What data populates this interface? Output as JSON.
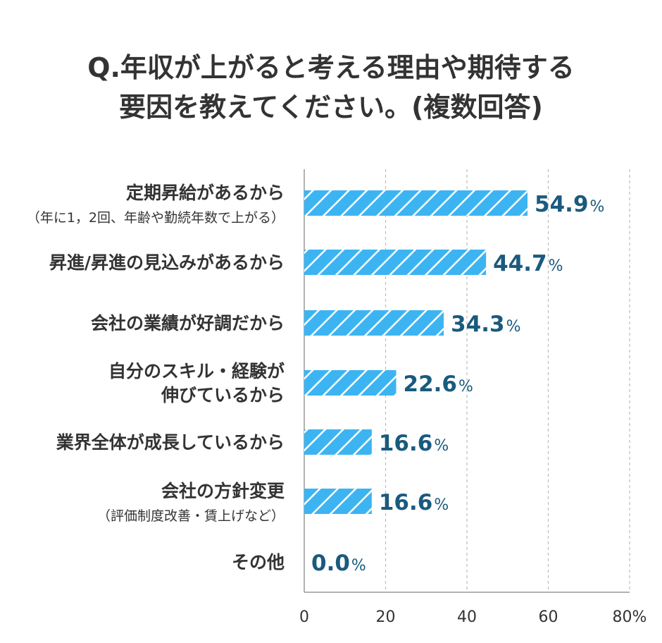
{
  "chart_data": {
    "type": "bar",
    "orientation": "horizontal",
    "title_lines": [
      "Q.年収が上がると考える理由や期待する",
      "要因を教えてください。(複数回答)"
    ],
    "categories": [
      {
        "lines": [
          "定期昇給があるから"
        ],
        "sub": "（年に1，2回、年齢や勤続年数で上がる）"
      },
      {
        "lines": [
          "昇進/昇進の見込みがあるから"
        ],
        "sub": ""
      },
      {
        "lines": [
          "会社の業績が好調だから"
        ],
        "sub": ""
      },
      {
        "lines": [
          "自分のスキル・経験が",
          "伸びているから"
        ],
        "sub": ""
      },
      {
        "lines": [
          "業界全体が成長しているから"
        ],
        "sub": ""
      },
      {
        "lines": [
          "会社の方針変更"
        ],
        "sub": "（評価制度改善・賃上げなど）"
      },
      {
        "lines": [
          "その他"
        ],
        "sub": ""
      }
    ],
    "values": [
      54.9,
      44.7,
      34.3,
      22.6,
      16.6,
      16.6,
      0.0
    ],
    "value_labels": [
      "54.9",
      "44.7",
      "34.3",
      "22.6",
      "16.6",
      "16.6",
      "0.0"
    ],
    "value_unit": "%",
    "xlim": [
      0,
      80
    ],
    "x_ticks": [
      "0",
      "20",
      "40",
      "60",
      "80%"
    ],
    "grid": true,
    "colors": {
      "bar": "#3db4f2",
      "hatch": "#ffffff",
      "value_text": "#1a5a7e",
      "grid": "#bbbbbb",
      "axis": "#999999"
    }
  }
}
